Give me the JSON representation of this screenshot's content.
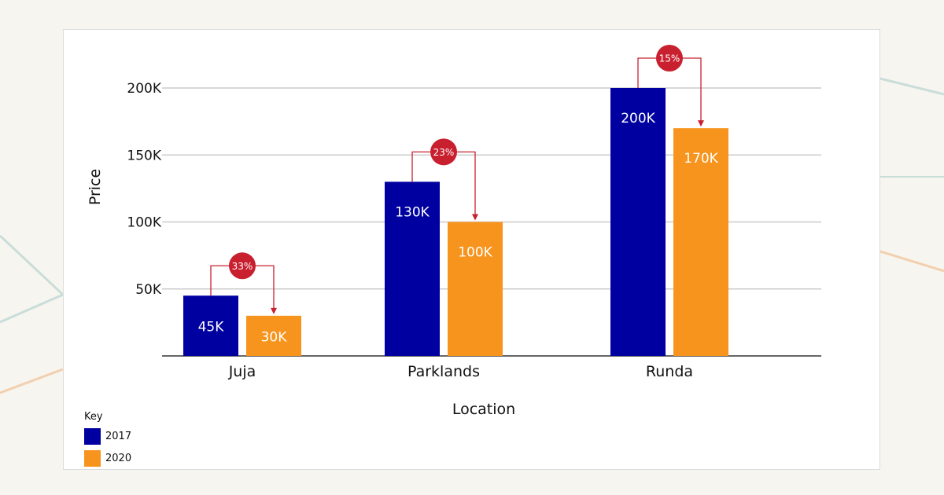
{
  "colors": {
    "series_2017": "#0000a0",
    "series_2020": "#f7941d",
    "badge": "#c8202f",
    "grid": "#cccccc",
    "axis": "#333333"
  },
  "chart_data": {
    "type": "bar",
    "categories": [
      "Juja",
      "Parklands",
      "Runda"
    ],
    "series": [
      {
        "name": "2017",
        "values": [
          45000,
          130000,
          200000
        ],
        "labels": [
          "45K",
          "130K",
          "200K"
        ],
        "color": "#0000a0"
      },
      {
        "name": "2020",
        "values": [
          30000,
          100000,
          170000
        ],
        "labels": [
          "30K",
          "100K",
          "170K"
        ],
        "color": "#f7941d"
      }
    ],
    "change_labels": [
      "33%",
      "23%",
      "15%"
    ],
    "xlabel": "Location",
    "ylabel": "Price",
    "yticks": [
      50000,
      100000,
      150000,
      200000
    ],
    "ytick_labels": [
      "50K",
      "100K",
      "150K",
      "200K"
    ],
    "ylim": [
      0,
      200000
    ],
    "grid": true
  },
  "legend": {
    "title": "Key",
    "items": [
      "2017",
      "2020"
    ]
  }
}
